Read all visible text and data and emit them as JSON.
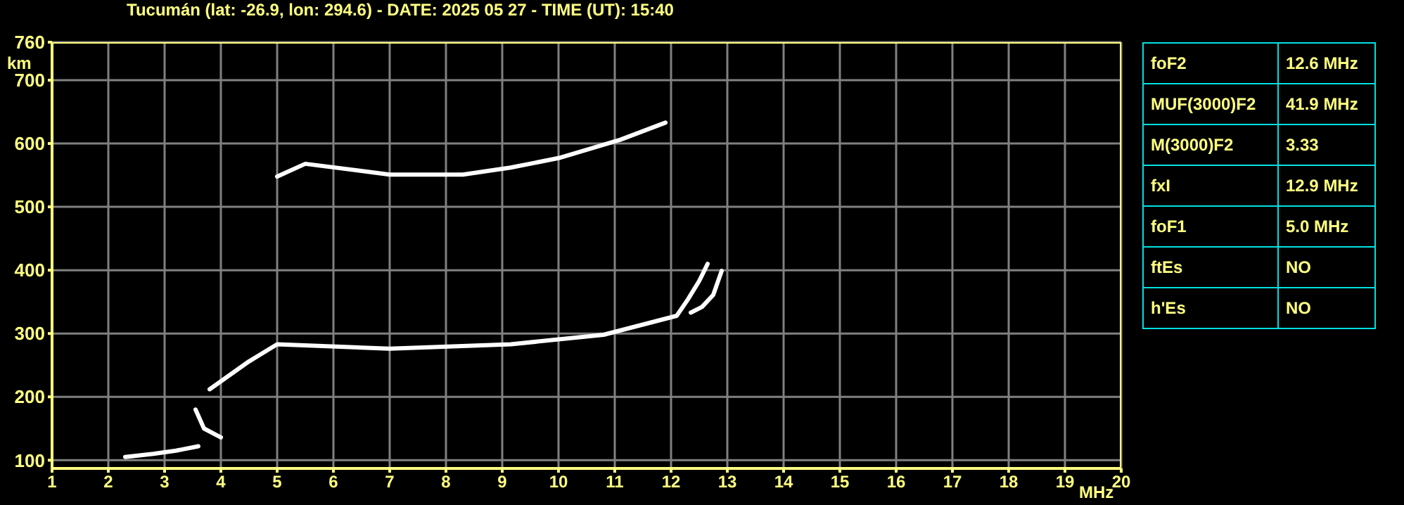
{
  "chart_data": [
    {
      "type": "line",
      "title": "Tucumán (lat: -26.9, lon: 294.6) - DATE: 2025 05 27 - TIME (UT): 15:40",
      "xlabel": "MHz",
      "ylabel": "km",
      "xlim": [
        1,
        20
      ],
      "xticks": [
        1,
        2,
        3,
        4,
        5,
        6,
        7,
        8,
        9,
        10,
        11,
        12,
        13,
        14,
        15,
        16,
        17,
        18,
        19,
        20
      ],
      "ylim": [
        87,
        760
      ],
      "yticks": [
        100,
        200,
        300,
        400,
        500,
        600,
        700,
        760
      ],
      "grid": true,
      "marker": "none",
      "line_style": "solid",
      "series": [
        {
          "color": "#ffffff",
          "x": [
            2.3,
            2.8,
            3.2,
            3.6
          ],
          "values": [
            105,
            110,
            115,
            122
          ]
        },
        {
          "color": "#ffffff",
          "x": [
            3.55,
            3.7,
            4.0
          ],
          "values": [
            180,
            150,
            136
          ]
        },
        {
          "color": "#ffffff",
          "x": [
            3.8,
            4.5,
            5.0,
            7.0,
            9.15,
            10.8,
            12.1,
            12.3,
            12.5,
            12.65
          ],
          "values": [
            212,
            256,
            283,
            276,
            283,
            298,
            328,
            354,
            383,
            410
          ]
        },
        {
          "color": "#ffffff",
          "x": [
            12.35,
            12.55,
            12.75,
            12.9
          ],
          "values": [
            333,
            342,
            361,
            399
          ]
        },
        {
          "color": "#ffffff",
          "x": [
            5.0,
            5.5,
            7.0,
            8.3,
            9.15,
            10.0,
            11.1,
            11.9
          ],
          "values": [
            548,
            568,
            551,
            551,
            562,
            577,
            606,
            633
          ]
        }
      ]
    },
    {
      "type": "other",
      "annotations": [
        "foF2",
        "12.6 MHz",
        "MUF(3000)F2",
        "41.9 MHz",
        "M(3000)F2",
        "3.33",
        "fxI",
        "12.9 MHz",
        "foF1",
        "5.0 MHz",
        "ftEs",
        "NO",
        "h'Es",
        "NO"
      ]
    }
  ]
}
